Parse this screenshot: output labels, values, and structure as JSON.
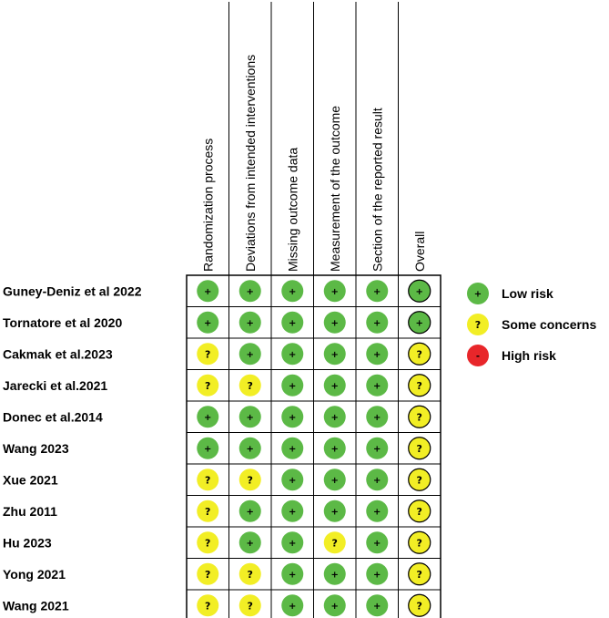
{
  "columns": [
    "Randomization process",
    "Deviations from intended interventions",
    "Missing outcome data",
    "Measurement of the outcome",
    "Section of the reported result",
    "Overall"
  ],
  "studies": [
    {
      "name": "Guney-Deniz et al 2022",
      "ratings": [
        "low",
        "low",
        "low",
        "low",
        "low",
        "low"
      ]
    },
    {
      "name": "Tornatore et al 2020",
      "ratings": [
        "low",
        "low",
        "low",
        "low",
        "low",
        "low"
      ]
    },
    {
      "name": "Cakmak et al.2023",
      "ratings": [
        "some",
        "low",
        "low",
        "low",
        "low",
        "some"
      ]
    },
    {
      "name": "Jarecki et al.2021",
      "ratings": [
        "some",
        "some",
        "low",
        "low",
        "low",
        "some"
      ]
    },
    {
      "name": "Donec et al.2014",
      "ratings": [
        "low",
        "low",
        "low",
        "low",
        "low",
        "some"
      ]
    },
    {
      "name": "Wang 2023",
      "ratings": [
        "low",
        "low",
        "low",
        "low",
        "low",
        "some"
      ]
    },
    {
      "name": "Xue 2021",
      "ratings": [
        "some",
        "some",
        "low",
        "low",
        "low",
        "some"
      ]
    },
    {
      "name": "Zhu 2011",
      "ratings": [
        "some",
        "low",
        "low",
        "low",
        "low",
        "some"
      ]
    },
    {
      "name": "Hu 2023",
      "ratings": [
        "some",
        "low",
        "low",
        "some",
        "low",
        "some"
      ]
    },
    {
      "name": "Yong 2021",
      "ratings": [
        "some",
        "some",
        "low",
        "low",
        "low",
        "some"
      ]
    },
    {
      "name": "Wang 2021",
      "ratings": [
        "some",
        "some",
        "low",
        "low",
        "low",
        "some"
      ]
    }
  ],
  "legend": [
    {
      "key": "low",
      "symbol": "+",
      "label": "Low risk"
    },
    {
      "key": "some",
      "symbol": "?",
      "label": "Some concerns"
    },
    {
      "key": "high",
      "symbol": "-",
      "label": "High risk"
    }
  ],
  "colors": {
    "low": "#5cb946",
    "some": "#f2ee25",
    "high": "#e8262a",
    "grid": "#000000"
  }
}
